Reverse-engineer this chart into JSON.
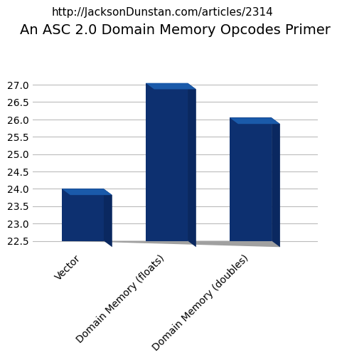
{
  "title": "An ASC 2.0 Domain Memory Opcodes Primer",
  "subtitle": "http://JacksonDunstan.com/articles/2314",
  "categories": [
    "Vector",
    "Domain Memory (floats)",
    "Domain Memory (doubles)"
  ],
  "values": [
    24.0,
    27.05,
    26.05
  ],
  "bar_color_front": "#0D3070",
  "bar_color_top": "#1a5aaa",
  "bar_color_side": "#0a2860",
  "floor_color": "#a0a0a0",
  "ylim": [
    22.5,
    27.5
  ],
  "yticks": [
    22.5,
    23.0,
    23.5,
    24.0,
    24.5,
    25.0,
    25.5,
    26.0,
    26.5,
    27.0
  ],
  "title_fontsize": 14,
  "subtitle_fontsize": 11,
  "tick_fontsize": 10,
  "xlabel_fontsize": 10,
  "background_color": "#ffffff",
  "grid_color": "#bbbbbb"
}
